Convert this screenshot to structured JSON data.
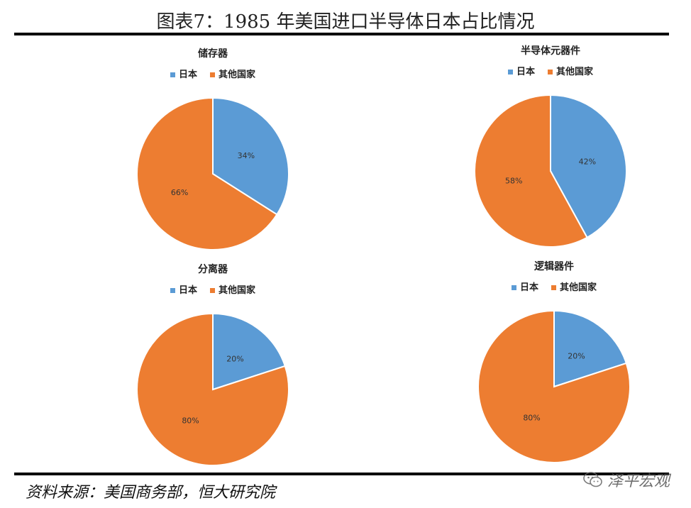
{
  "figure": {
    "title": "图表7：1985 年美国进口半导体日本占比情况",
    "source": "资料来源：美国商务部，恒大研究院",
    "watermark": "泽平宏观"
  },
  "colors": {
    "japan": "#5b9bd5",
    "other": "#ed7d31"
  },
  "chart_data": [
    {
      "type": "pie",
      "title": "储存器",
      "categories": [
        "日本",
        "其他国家"
      ],
      "values": [
        34,
        66
      ],
      "labels": [
        "34%",
        "66%"
      ],
      "legend": "top"
    },
    {
      "type": "pie",
      "title": "半导体元器件",
      "categories": [
        "日本",
        "其他国家"
      ],
      "values": [
        42,
        58
      ],
      "labels": [
        "42%",
        "58%"
      ],
      "legend": "top"
    },
    {
      "type": "pie",
      "title": "分离器",
      "categories": [
        "日本",
        "其他国家"
      ],
      "values": [
        20,
        80
      ],
      "labels": [
        "20%",
        "80%"
      ],
      "legend": "top"
    },
    {
      "type": "pie",
      "title": "逻辑器件",
      "categories": [
        "日本",
        "其他国家"
      ],
      "values": [
        20,
        80
      ],
      "labels": [
        "20%",
        "80%"
      ],
      "legend": "top"
    }
  ]
}
